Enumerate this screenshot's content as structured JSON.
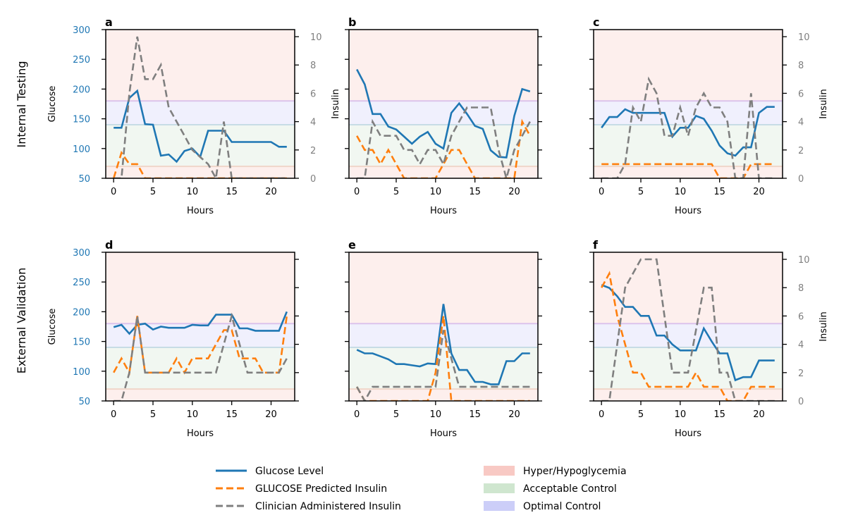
{
  "figure": {
    "row_labels": [
      "Internal Testing",
      "External Validation"
    ]
  },
  "colors": {
    "glucose": "#1f77b4",
    "predicted": "#ff7f0e",
    "clinician": "#7f7f7f",
    "hyper_hypo": "#f8c9c4",
    "acceptable": "#cfe6cf",
    "optimal": "#cccef8"
  },
  "legend": {
    "lines": [
      "Glucose Level",
      "GLUCOSE Predicted Insulin",
      "Clinician Administered Insulin"
    ],
    "patches": [
      "Hyper/Hypoglycemia",
      "Acceptable Control",
      "Optimal Control"
    ]
  },
  "chart_data": [
    {
      "type": "line",
      "panel": "a",
      "xlabel": "Hours",
      "ylabel_left": "Glucose",
      "ylabel_right": "Insulin",
      "xlim": [
        -1,
        23
      ],
      "ylim_left": [
        50,
        300
      ],
      "ylim_right": [
        0,
        10.5
      ],
      "xticks": [
        0,
        5,
        10,
        15,
        20
      ],
      "yticks_left": [
        50,
        100,
        150,
        200,
        250,
        300
      ],
      "yticks_right": [
        0,
        2,
        4,
        6,
        8,
        10
      ],
      "bands": {
        "hypo_below": 70,
        "optimal": [
          140,
          180
        ],
        "hyper_above": 180
      },
      "glucose": {
        "x": [
          0,
          1,
          2,
          3,
          4,
          5,
          6,
          7,
          8,
          9,
          10,
          11,
          12,
          13,
          14,
          15,
          16,
          17,
          18,
          19,
          20,
          21,
          22
        ],
        "y": [
          135,
          135,
          185,
          197,
          141,
          140,
          88,
          90,
          78,
          96,
          100,
          86,
          130,
          130,
          130,
          111,
          111,
          111,
          111,
          111,
          111,
          103,
          103
        ]
      },
      "predicted": {
        "x": [
          0,
          1,
          2,
          3,
          4,
          5,
          6,
          7,
          8,
          9,
          10,
          11,
          12,
          13,
          14,
          15,
          16,
          17,
          18,
          19,
          20,
          21,
          22
        ],
        "y": [
          0,
          1.8,
          1,
          1,
          0,
          0,
          0,
          0,
          0,
          0,
          0,
          0,
          0,
          0,
          0,
          0,
          0,
          0,
          0,
          0,
          0,
          0,
          0
        ]
      },
      "clinician": {
        "x": [
          0,
          1,
          2,
          3,
          4,
          5,
          6,
          7,
          8,
          9,
          10,
          11,
          12,
          13,
          14,
          15,
          16,
          17,
          18,
          19,
          20,
          21,
          22
        ],
        "y": [
          0,
          0,
          6,
          10,
          7,
          7,
          8,
          5,
          4,
          3,
          2,
          1.5,
          1,
          0,
          4,
          0,
          0,
          0,
          0,
          0,
          0,
          0,
          0
        ]
      }
    },
    {
      "type": "line",
      "panel": "b",
      "xlabel": "Hours",
      "xlim": [
        -1,
        23
      ],
      "ylim_left": [
        50,
        300
      ],
      "ylim_right": [
        0,
        10.5
      ],
      "xticks": [
        0,
        5,
        10,
        15,
        20
      ],
      "bands": {
        "hypo_below": 70,
        "optimal": [
          140,
          180
        ],
        "hyper_above": 180
      },
      "glucose": {
        "x": [
          0,
          1,
          2,
          3,
          4,
          5,
          6,
          7,
          8,
          9,
          10,
          11,
          12,
          13,
          14,
          15,
          16,
          17,
          18,
          19,
          20,
          21,
          22
        ],
        "y": [
          233,
          208,
          158,
          158,
          137,
          132,
          120,
          108,
          120,
          128,
          108,
          100,
          160,
          176,
          158,
          138,
          133,
          97,
          86,
          85,
          155,
          200,
          196
        ]
      },
      "predicted": {
        "x": [
          0,
          1,
          2,
          3,
          4,
          5,
          6,
          7,
          8,
          9,
          10,
          11,
          12,
          13,
          14,
          15,
          16,
          17,
          18,
          19,
          20,
          21,
          22
        ],
        "y": [
          3,
          2,
          2,
          1,
          2,
          1,
          0,
          0,
          0,
          0,
          0,
          1,
          2,
          2,
          1,
          0,
          0,
          0,
          0,
          0,
          0,
          4,
          3
        ]
      },
      "clinician": {
        "x": [
          0,
          1,
          2,
          3,
          4,
          5,
          6,
          7,
          8,
          9,
          10,
          11,
          12,
          13,
          14,
          15,
          16,
          17,
          18,
          19,
          20,
          21,
          22
        ],
        "y": [
          0,
          0,
          4,
          3,
          3,
          3,
          2,
          2,
          1,
          2,
          2,
          1,
          3,
          4,
          5,
          5,
          5,
          5,
          2,
          0,
          2,
          3,
          4
        ]
      }
    },
    {
      "type": "line",
      "panel": "c",
      "xlabel": "Hours",
      "ylabel_right": "Insulin",
      "xlim": [
        -1,
        23
      ],
      "ylim_left": [
        50,
        300
      ],
      "ylim_right": [
        0,
        10.5
      ],
      "xticks": [
        0,
        5,
        10,
        15,
        20
      ],
      "yticks_right": [
        0,
        2,
        4,
        6,
        8,
        10
      ],
      "bands": {
        "hypo_below": 70,
        "optimal": [
          140,
          180
        ],
        "hyper_above": 180
      },
      "glucose": {
        "x": [
          0,
          1,
          2,
          3,
          4,
          5,
          6,
          7,
          8,
          9,
          10,
          11,
          12,
          13,
          14,
          15,
          16,
          17,
          18,
          19,
          20,
          21,
          22
        ],
        "y": [
          135,
          153,
          153,
          166,
          160,
          160,
          160,
          160,
          160,
          120,
          135,
          135,
          155,
          150,
          130,
          105,
          92,
          88,
          102,
          102,
          160,
          170,
          170
        ]
      },
      "predicted": {
        "x": [
          0,
          1,
          2,
          3,
          4,
          5,
          6,
          7,
          8,
          9,
          10,
          11,
          12,
          13,
          14,
          15,
          16,
          17,
          18,
          19,
          20,
          21,
          22
        ],
        "y": [
          1,
          1,
          1,
          1,
          1,
          1,
          1,
          1,
          1,
          1,
          1,
          1,
          1,
          1,
          1,
          0,
          0,
          0,
          0,
          1,
          1,
          1,
          1
        ]
      },
      "clinician": {
        "x": [
          0,
          1,
          2,
          3,
          4,
          5,
          6,
          7,
          8,
          9,
          10,
          11,
          12,
          13,
          14,
          15,
          16,
          17,
          18,
          19,
          20,
          21,
          22
        ],
        "y": [
          0,
          0,
          0,
          1,
          5,
          4,
          7,
          6,
          3,
          3,
          5,
          3,
          5,
          6,
          5,
          5,
          4,
          0,
          0,
          6,
          0,
          0,
          0
        ]
      }
    },
    {
      "type": "line",
      "panel": "d",
      "xlabel": "Hours",
      "ylabel_left": "Glucose",
      "xlim": [
        -1,
        23
      ],
      "ylim_left": [
        50,
        300
      ],
      "ylim_right": [
        0,
        10.5
      ],
      "xticks": [
        0,
        5,
        10,
        15,
        20
      ],
      "yticks_left": [
        50,
        100,
        150,
        200,
        250,
        300
      ],
      "bands": {
        "hypo_below": 70,
        "optimal": [
          140,
          180
        ],
        "hyper_above": 180
      },
      "glucose": {
        "x": [
          0,
          1,
          2,
          3,
          4,
          5,
          6,
          7,
          8,
          9,
          10,
          11,
          12,
          13,
          14,
          15,
          16,
          17,
          18,
          19,
          20,
          21,
          22
        ],
        "y": [
          174,
          178,
          163,
          178,
          180,
          170,
          175,
          173,
          173,
          173,
          178,
          177,
          177,
          195,
          195,
          195,
          172,
          172,
          168,
          168,
          168,
          168,
          200
        ]
      },
      "predicted": {
        "x": [
          0,
          1,
          2,
          3,
          4,
          5,
          6,
          7,
          8,
          9,
          10,
          11,
          12,
          13,
          14,
          15,
          16,
          17,
          18,
          19,
          20,
          21,
          22
        ],
        "y": [
          2,
          3,
          2,
          6,
          2,
          2,
          2,
          2,
          3,
          2,
          3,
          3,
          3,
          4,
          5,
          5,
          3,
          3,
          3,
          2,
          2,
          2,
          6
        ]
      },
      "clinician": {
        "x": [
          0,
          1,
          2,
          3,
          4,
          5,
          6,
          7,
          8,
          9,
          10,
          11,
          12,
          13,
          14,
          15,
          16,
          17,
          18,
          19,
          20,
          21,
          22
        ],
        "y": [
          0,
          0,
          2,
          6,
          2,
          2,
          2,
          2,
          2,
          2,
          2,
          2,
          2,
          2,
          4,
          6,
          4,
          2,
          2,
          2,
          2,
          2,
          3
        ]
      }
    },
    {
      "type": "line",
      "panel": "e",
      "xlabel": "Hours",
      "xlim": [
        -1,
        23
      ],
      "ylim_left": [
        50,
        300
      ],
      "ylim_right": [
        0,
        10.5
      ],
      "xticks": [
        0,
        5,
        10,
        15,
        20
      ],
      "bands": {
        "hypo_below": 70,
        "optimal": [
          140,
          180
        ],
        "hyper_above": 180
      },
      "glucose": {
        "x": [
          0,
          1,
          2,
          3,
          4,
          5,
          6,
          7,
          8,
          9,
          10,
          11,
          12,
          13,
          14,
          15,
          16,
          17,
          18,
          19,
          20,
          21,
          22
        ],
        "y": [
          136,
          130,
          130,
          125,
          120,
          112,
          112,
          110,
          108,
          113,
          112,
          213,
          130,
          102,
          102,
          82,
          82,
          78,
          78,
          117,
          117,
          130,
          130
        ]
      },
      "predicted": {
        "x": [
          0,
          1,
          2,
          3,
          4,
          5,
          6,
          7,
          8,
          9,
          10,
          11,
          12,
          13,
          14,
          15,
          16,
          17,
          18,
          19,
          20,
          21,
          22
        ],
        "y": [
          1,
          0,
          0,
          0,
          0,
          0,
          0,
          0,
          0,
          0,
          2,
          6,
          0,
          0,
          0,
          0,
          0,
          0,
          0,
          0,
          0,
          0,
          0
        ]
      },
      "clinician": {
        "x": [
          0,
          1,
          2,
          3,
          4,
          5,
          6,
          7,
          8,
          9,
          10,
          11,
          12,
          13,
          14,
          15,
          16,
          17,
          18,
          19,
          20,
          21,
          22
        ],
        "y": [
          1,
          0,
          1,
          1,
          1,
          1,
          1,
          1,
          1,
          1,
          1,
          5,
          3,
          1,
          1,
          1,
          1,
          1,
          1,
          1,
          1,
          1,
          1
        ]
      }
    },
    {
      "type": "line",
      "panel": "f",
      "xlabel": "Hours",
      "ylabel_right": "Insulin",
      "xlim": [
        -1,
        23
      ],
      "ylim_left": [
        50,
        300
      ],
      "ylim_right": [
        0,
        10.5
      ],
      "xticks": [
        0,
        5,
        10,
        15,
        20
      ],
      "yticks_right": [
        0,
        2,
        4,
        6,
        8,
        10
      ],
      "bands": {
        "hypo_below": 70,
        "optimal": [
          140,
          180
        ],
        "hyper_above": 180
      },
      "glucose": {
        "x": [
          0,
          1,
          2,
          3,
          4,
          5,
          6,
          7,
          8,
          9,
          10,
          11,
          12,
          13,
          14,
          15,
          16,
          17,
          18,
          19,
          20,
          21,
          22
        ],
        "y": [
          245,
          240,
          226,
          208,
          208,
          193,
          193,
          160,
          160,
          145,
          135,
          135,
          135,
          172,
          150,
          130,
          130,
          85,
          90,
          90,
          118,
          118,
          118
        ]
      },
      "predicted": {
        "x": [
          0,
          1,
          2,
          3,
          4,
          5,
          6,
          7,
          8,
          9,
          10,
          11,
          12,
          13,
          14,
          15,
          16,
          17,
          18,
          19,
          20,
          21,
          22
        ],
        "y": [
          8,
          9,
          6,
          4,
          2,
          2,
          1,
          1,
          1,
          1,
          1,
          1,
          2,
          1,
          1,
          1,
          0,
          0,
          0,
          1,
          1,
          1,
          1
        ]
      },
      "clinician": {
        "x": [
          0,
          1,
          2,
          3,
          4,
          5,
          6,
          7,
          8,
          9,
          10,
          11,
          12,
          13,
          14,
          15,
          16,
          17,
          18,
          19,
          20,
          21,
          22
        ],
        "y": [
          0,
          0,
          4,
          8,
          9,
          10,
          10,
          10,
          6,
          2,
          2,
          2,
          5,
          8,
          8,
          2,
          2,
          0,
          0,
          0,
          0,
          0,
          0
        ]
      }
    }
  ]
}
